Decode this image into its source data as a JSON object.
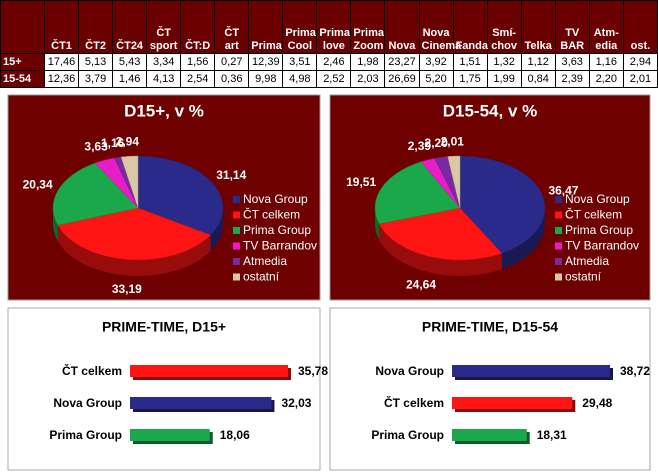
{
  "table": {
    "header": [
      "ČT1",
      "ČT2",
      "ČT24",
      "ČT\nsport",
      "ČT:D",
      "ČT\nart",
      "Prima",
      "Prima\nCool",
      "Prima\nlove",
      "Prima\nZoom",
      "Nova",
      "Nova\nCinema",
      "Fanda",
      "Smí-\nchov",
      "Telka",
      "TV\nBAR",
      "Atm-\nedia",
      "ost."
    ],
    "rows": [
      [
        "15+",
        "17,46",
        "5,13",
        "5,43",
        "3,34",
        "1,56",
        "0,27",
        "12,39",
        "3,51",
        "2,46",
        "1,98",
        "23,27",
        "3,92",
        "1,51",
        "1,32",
        "1,12",
        "3,63",
        "1,16",
        "2,94"
      ],
      [
        "15-54",
        "12,36",
        "3,79",
        "1,46",
        "4,13",
        "2,54",
        "0,36",
        "9,98",
        "4,98",
        "2,52",
        "2,03",
        "26,69",
        "5,20",
        "1,75",
        "1,99",
        "0,84",
        "2,39",
        "2,20",
        "2,01"
      ]
    ]
  },
  "chart_data": [
    {
      "type": "pie",
      "title": "D15+, v %",
      "categories": [
        "Nova Group",
        "ČT celkem",
        "Prima Group",
        "TV Barrandov",
        "Atmedia",
        "ostatní"
      ],
      "values": [
        31.14,
        33.19,
        20.34,
        3.63,
        1.16,
        2.94
      ],
      "value_labels": [
        "31,14",
        "33,19",
        "20,34",
        "3,63",
        "1,16",
        "2,94"
      ],
      "colors": [
        "#2a2a8a",
        "#ff1414",
        "#1aa84a",
        "#e81cc8",
        "#7a2aa0",
        "#d9c8a6"
      ]
    },
    {
      "type": "pie",
      "title": "D15-54, v %",
      "categories": [
        "Nova Group",
        "ČT celkem",
        "Prima Group",
        "TV Barrandov",
        "Atmedia",
        "ostatní"
      ],
      "values": [
        36.47,
        24.64,
        19.51,
        2.39,
        2.2,
        2.01
      ],
      "value_labels": [
        "36,47",
        "24,64",
        "19,51",
        "2,39",
        "2,20",
        "2,01"
      ],
      "colors": [
        "#2a2a8a",
        "#ff1414",
        "#1aa84a",
        "#e81cc8",
        "#7a2aa0",
        "#d9c8a6"
      ]
    },
    {
      "type": "bar",
      "title": "PRIME-TIME, D15+",
      "categories": [
        "ČT celkem",
        "Nova Group",
        "Prima Group"
      ],
      "values": [
        35.78,
        32.03,
        18.06
      ],
      "value_labels": [
        "35,78",
        "32,03",
        "18,06"
      ],
      "colors": [
        "#ff1414",
        "#2a2a8a",
        "#1aa84a"
      ]
    },
    {
      "type": "bar",
      "title": "PRIME-TIME, D15-54",
      "categories": [
        "Nova Group",
        "ČT celkem",
        "Prima Group"
      ],
      "values": [
        38.72,
        29.48,
        18.31
      ],
      "value_labels": [
        "38,72",
        "29,48",
        "18,31"
      ],
      "colors": [
        "#2a2a8a",
        "#ff1414",
        "#1aa84a"
      ]
    }
  ]
}
